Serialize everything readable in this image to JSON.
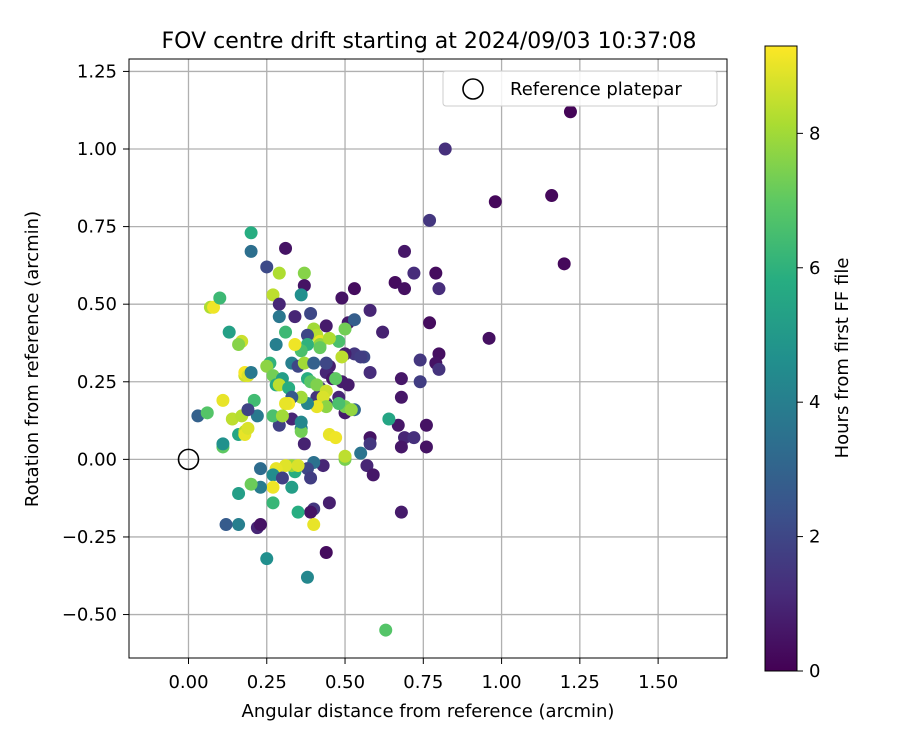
{
  "chart_data": {
    "type": "scatter",
    "title": "FOV centre drift starting at 2024/09/03 10:37:08",
    "xlabel": "Angular distance from reference (arcmin)",
    "ylabel": "Rotation from reference (arcmin)",
    "xlim": [
      -0.19,
      1.72
    ],
    "ylim": [
      -0.64,
      1.29
    ],
    "xticks": [
      0.0,
      0.25,
      0.5,
      0.75,
      1.0,
      1.25,
      1.5
    ],
    "yticks": [
      -0.5,
      -0.25,
      0.0,
      0.25,
      0.5,
      0.75,
      1.0,
      1.25
    ],
    "xtick_labels": [
      "0.00",
      "0.25",
      "0.50",
      "0.75",
      "1.00",
      "1.25",
      "1.50"
    ],
    "ytick_labels": [
      "−0.50",
      "−0.25",
      "0.00",
      "0.25",
      "0.50",
      "0.75",
      "1.00",
      "1.25"
    ],
    "grid": true,
    "legend": {
      "position": "top-right",
      "label": "Reference platepar",
      "marker": "hollow-circle"
    },
    "reference_point": [
      0.0,
      0.0
    ],
    "colorbar": {
      "label": "Hours from first FF file",
      "colormap": "viridis",
      "range": [
        0,
        9.3
      ],
      "ticks": [
        0,
        2,
        4,
        6,
        8
      ],
      "tick_labels": [
        "0",
        "2",
        "4",
        "6",
        "8"
      ],
      "colors": [
        "#440154",
        "#472c7a",
        "#3b518b",
        "#2c718e",
        "#21908d",
        "#27ad81",
        "#5cc863",
        "#aadc32",
        "#fde725"
      ]
    },
    "points": [
      [
        1.22,
        1.12,
        0.1
      ],
      [
        0.82,
        1.0,
        1.3
      ],
      [
        0.98,
        0.83,
        0.2
      ],
      [
        1.16,
        0.85,
        0.2
      ],
      [
        1.2,
        0.63,
        0.2
      ],
      [
        0.96,
        0.39,
        0.4
      ],
      [
        0.77,
        0.77,
        1.5
      ],
      [
        0.69,
        0.67,
        0.6
      ],
      [
        0.66,
        0.57,
        0.3
      ],
      [
        0.69,
        0.55,
        0.4
      ],
      [
        0.79,
        0.6,
        0.3
      ],
      [
        0.8,
        0.55,
        1.2
      ],
      [
        0.72,
        0.6,
        1.2
      ],
      [
        0.77,
        0.44,
        0.3
      ],
      [
        0.62,
        0.41,
        0.9
      ],
      [
        0.58,
        0.48,
        1.0
      ],
      [
        0.53,
        0.55,
        0.3
      ],
      [
        0.49,
        0.52,
        0.5
      ],
      [
        0.51,
        0.44,
        0.7
      ],
      [
        0.53,
        0.45,
        2.8
      ],
      [
        0.8,
        0.34,
        0.4
      ],
      [
        0.79,
        0.31,
        0.5
      ],
      [
        0.8,
        0.29,
        1.4
      ],
      [
        0.74,
        0.32,
        1.5
      ],
      [
        0.74,
        0.25,
        1.7
      ],
      [
        0.68,
        0.26,
        0.6
      ],
      [
        0.68,
        0.2,
        0.6
      ],
      [
        0.58,
        0.28,
        1.2
      ],
      [
        0.56,
        0.33,
        2.0
      ],
      [
        0.53,
        0.34,
        1.5
      ],
      [
        0.5,
        0.34,
        0.8
      ],
      [
        0.51,
        0.24,
        0.7
      ],
      [
        0.49,
        0.25,
        0.7
      ],
      [
        0.45,
        0.3,
        0.8
      ],
      [
        0.44,
        0.28,
        1.0
      ],
      [
        0.42,
        0.23,
        1.4
      ],
      [
        0.41,
        0.2,
        1.4
      ],
      [
        0.44,
        0.18,
        1.4
      ],
      [
        0.48,
        0.2,
        1.0
      ],
      [
        0.5,
        0.15,
        0.7
      ],
      [
        0.53,
        0.16,
        3.1
      ],
      [
        0.5,
        0.17,
        7.4
      ],
      [
        0.52,
        0.16,
        7.8
      ],
      [
        0.67,
        0.11,
        0.6
      ],
      [
        0.76,
        0.11,
        0.5
      ],
      [
        0.69,
        0.07,
        1.0
      ],
      [
        0.72,
        0.07,
        1.3
      ],
      [
        0.68,
        0.04,
        0.6
      ],
      [
        0.76,
        0.04,
        0.5
      ],
      [
        0.64,
        0.13,
        5.5
      ],
      [
        0.58,
        0.07,
        0.5
      ],
      [
        0.58,
        0.05,
        1.5
      ],
      [
        0.55,
        0.02,
        3.6
      ],
      [
        0.5,
        0.0,
        7.4
      ],
      [
        0.5,
        0.01,
        8.4
      ],
      [
        0.57,
        -0.02,
        1.0
      ],
      [
        0.59,
        -0.05,
        0.6
      ],
      [
        0.45,
        0.08,
        9.0
      ],
      [
        0.43,
        -0.02,
        1.0
      ],
      [
        0.4,
        -0.01,
        3.5
      ],
      [
        0.38,
        -0.03,
        2.0
      ],
      [
        0.34,
        -0.04,
        5.8
      ],
      [
        0.33,
        -0.02,
        7.9
      ],
      [
        0.35,
        -0.02,
        8.8
      ],
      [
        0.31,
        -0.02,
        8.9
      ],
      [
        0.28,
        -0.03,
        9.0
      ],
      [
        0.27,
        -0.05,
        4.5
      ],
      [
        0.3,
        -0.06,
        1.8
      ],
      [
        0.33,
        -0.09,
        5.2
      ],
      [
        0.39,
        -0.06,
        1.7
      ],
      [
        0.4,
        -0.16,
        1.5
      ],
      [
        0.39,
        -0.17,
        0.5
      ],
      [
        0.4,
        -0.21,
        9.0
      ],
      [
        0.35,
        -0.17,
        5.8
      ],
      [
        0.27,
        -0.14,
        6.2
      ],
      [
        0.27,
        -0.09,
        9.1
      ],
      [
        0.23,
        -0.09,
        3.9
      ],
      [
        0.23,
        -0.03,
        3.3
      ],
      [
        0.2,
        -0.08,
        7.2
      ],
      [
        0.16,
        -0.11,
        5.2
      ],
      [
        0.16,
        -0.21,
        4.0
      ],
      [
        0.12,
        -0.21,
        2.7
      ],
      [
        0.22,
        -0.22,
        1.0
      ],
      [
        0.23,
        -0.21,
        0.5
      ],
      [
        0.45,
        -0.14,
        0.8
      ],
      [
        0.44,
        -0.3,
        0.3
      ],
      [
        0.25,
        -0.32,
        4.6
      ],
      [
        0.38,
        -0.38,
        4.3
      ],
      [
        0.63,
        -0.55,
        6.8
      ],
      [
        0.68,
        -0.17,
        0.7
      ],
      [
        0.03,
        0.14,
        2.9
      ],
      [
        0.06,
        0.15,
        6.8
      ],
      [
        0.11,
        0.04,
        7.0
      ],
      [
        0.11,
        0.05,
        4.7
      ],
      [
        0.11,
        0.19,
        9.0
      ],
      [
        0.14,
        0.13,
        8.4
      ],
      [
        0.16,
        0.08,
        5.5
      ],
      [
        0.17,
        0.14,
        8.3
      ],
      [
        0.18,
        0.09,
        8.4
      ],
      [
        0.18,
        0.08,
        9.0
      ],
      [
        0.19,
        0.1,
        8.8
      ],
      [
        0.17,
        0.38,
        8.6
      ],
      [
        0.16,
        0.37,
        7.6
      ],
      [
        0.13,
        0.41,
        5.3
      ],
      [
        0.07,
        0.49,
        8.2
      ],
      [
        0.08,
        0.49,
        9.1
      ],
      [
        0.1,
        0.52,
        6.3
      ],
      [
        0.18,
        0.27,
        8.6
      ],
      [
        0.18,
        0.28,
        9.2
      ],
      [
        0.19,
        0.27,
        8.8
      ],
      [
        0.2,
        0.28,
        3.8
      ],
      [
        0.22,
        0.14,
        3.8
      ],
      [
        0.21,
        0.19,
        6.4
      ],
      [
        0.19,
        0.16,
        1.9
      ],
      [
        0.2,
        0.67,
        3.4
      ],
      [
        0.2,
        0.73,
        5.8
      ],
      [
        0.25,
        0.62,
        2.1
      ],
      [
        0.29,
        0.6,
        8.2
      ],
      [
        0.27,
        0.53,
        8.4
      ],
      [
        0.29,
        0.5,
        1.0
      ],
      [
        0.31,
        0.68,
        0.5
      ],
      [
        0.37,
        0.6,
        7.6
      ],
      [
        0.37,
        0.56,
        0.5
      ],
      [
        0.36,
        0.53,
        4.6
      ],
      [
        0.29,
        0.46,
        3.7
      ],
      [
        0.34,
        0.46,
        1.0
      ],
      [
        0.39,
        0.47,
        2.0
      ],
      [
        0.4,
        0.42,
        8.0
      ],
      [
        0.41,
        0.4,
        8.3
      ],
      [
        0.42,
        0.38,
        9.0
      ],
      [
        0.42,
        0.37,
        7.8
      ],
      [
        0.38,
        0.4,
        2.0
      ],
      [
        0.38,
        0.37,
        6.0
      ],
      [
        0.36,
        0.35,
        6.6
      ],
      [
        0.34,
        0.37,
        9.1
      ],
      [
        0.31,
        0.41,
        6.3
      ],
      [
        0.28,
        0.37,
        4.0
      ],
      [
        0.26,
        0.31,
        6.0
      ],
      [
        0.25,
        0.3,
        7.7
      ],
      [
        0.27,
        0.27,
        7.3
      ],
      [
        0.28,
        0.24,
        5.7
      ],
      [
        0.3,
        0.26,
        5.2
      ],
      [
        0.29,
        0.24,
        8.4
      ],
      [
        0.32,
        0.23,
        5.8
      ],
      [
        0.33,
        0.31,
        4.0
      ],
      [
        0.35,
        0.3,
        2.0
      ],
      [
        0.37,
        0.31,
        8.0
      ],
      [
        0.38,
        0.26,
        5.8
      ],
      [
        0.39,
        0.25,
        6.9
      ],
      [
        0.41,
        0.24,
        7.5
      ],
      [
        0.44,
        0.22,
        8.6
      ],
      [
        0.43,
        0.2,
        8.8
      ],
      [
        0.44,
        0.17,
        7.7
      ],
      [
        0.41,
        0.17,
        9.0
      ],
      [
        0.38,
        0.18,
        4.2
      ],
      [
        0.36,
        0.2,
        8.0
      ],
      [
        0.33,
        0.2,
        2.7
      ],
      [
        0.32,
        0.18,
        9.2
      ],
      [
        0.31,
        0.18,
        9.0
      ],
      [
        0.33,
        0.13,
        1.0
      ],
      [
        0.29,
        0.11,
        1.8
      ],
      [
        0.27,
        0.14,
        6.6
      ],
      [
        0.36,
        0.1,
        4.0
      ],
      [
        0.36,
        0.09,
        7.3
      ],
      [
        0.37,
        0.05,
        0.9
      ],
      [
        0.36,
        0.12,
        4.3
      ],
      [
        0.3,
        0.14,
        8.0
      ],
      [
        0.47,
        0.07,
        9.1
      ],
      [
        0.48,
        0.18,
        6.6
      ],
      [
        0.44,
        0.31,
        2.0
      ],
      [
        0.46,
        0.26,
        0.6
      ],
      [
        0.47,
        0.26,
        7.0
      ],
      [
        0.49,
        0.33,
        8.4
      ],
      [
        0.5,
        0.42,
        7.3
      ],
      [
        0.48,
        0.38,
        6.6
      ],
      [
        0.45,
        0.39,
        8.2
      ],
      [
        0.42,
        0.36,
        7.1
      ],
      [
        0.44,
        0.43,
        0.7
      ],
      [
        0.55,
        0.33,
        1.7
      ],
      [
        0.4,
        0.31,
        2.9
      ]
    ]
  }
}
